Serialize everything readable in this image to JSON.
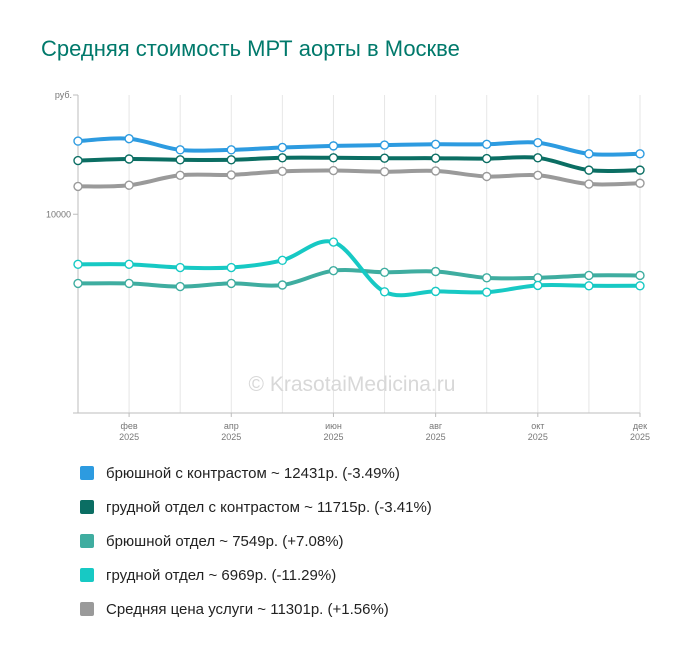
{
  "chart_data": {
    "type": "line",
    "title": "Средняя стоимость МРТ аорты в Москве",
    "ylabel": "руб.",
    "ylim": [
      5000,
      13000
    ],
    "yticks": [
      {
        "value": 10000,
        "label": "10000"
      }
    ],
    "grid": true,
    "watermark": "© KrasotaiMedicina.ru",
    "x_points": 12,
    "x_tick_labels": [
      {
        "index": 1,
        "month": "фев",
        "year": "2025"
      },
      {
        "index": 3,
        "month": "апр",
        "year": "2025"
      },
      {
        "index": 5,
        "month": "июн",
        "year": "2025"
      },
      {
        "index": 7,
        "month": "авг",
        "year": "2025"
      },
      {
        "index": 9,
        "month": "окт",
        "year": "2025"
      },
      {
        "index": 11,
        "month": "дек",
        "year": "2025"
      }
    ],
    "series": [
      {
        "name": "брюшной с контрастом",
        "color": "#2d9be0",
        "values": [
          11840,
          11900,
          11620,
          11620,
          11680,
          11720,
          11740,
          11760,
          11760,
          11800,
          11520,
          11520
        ],
        "legend": "брюшной с контрастом ~ 12431р. (-3.49%)"
      },
      {
        "name": "грудной отдел с контрастом",
        "color": "#0b6e63",
        "values": [
          11350,
          11390,
          11370,
          11370,
          11420,
          11420,
          11410,
          11410,
          11400,
          11420,
          11110,
          11110
        ],
        "legend": "грудной отдел с контрастом ~ 11715р. (-3.41%)"
      },
      {
        "name": "брюшной отдел",
        "color": "#3fada0",
        "values": [
          8260,
          8260,
          8180,
          8260,
          8220,
          8580,
          8540,
          8560,
          8400,
          8400,
          8460,
          8460
        ],
        "legend": "брюшной отдел ~ 7549р. (+7.08%)"
      },
      {
        "name": "грудной отдел",
        "color": "#17c9c4",
        "values": [
          8740,
          8740,
          8660,
          8660,
          8840,
          9300,
          8050,
          8060,
          8040,
          8210,
          8200,
          8200
        ],
        "legend": "грудной отдел ~ 6969р. (-11.29%)"
      },
      {
        "name": "Средняя цена услуги",
        "color": "#9a9a9a",
        "values": [
          10700,
          10730,
          10980,
          10990,
          11080,
          11100,
          11070,
          11090,
          10950,
          10980,
          10760,
          10780
        ],
        "legend": "Средняя цена услуги ~ 11301р. (+1.56%)"
      }
    ]
  }
}
